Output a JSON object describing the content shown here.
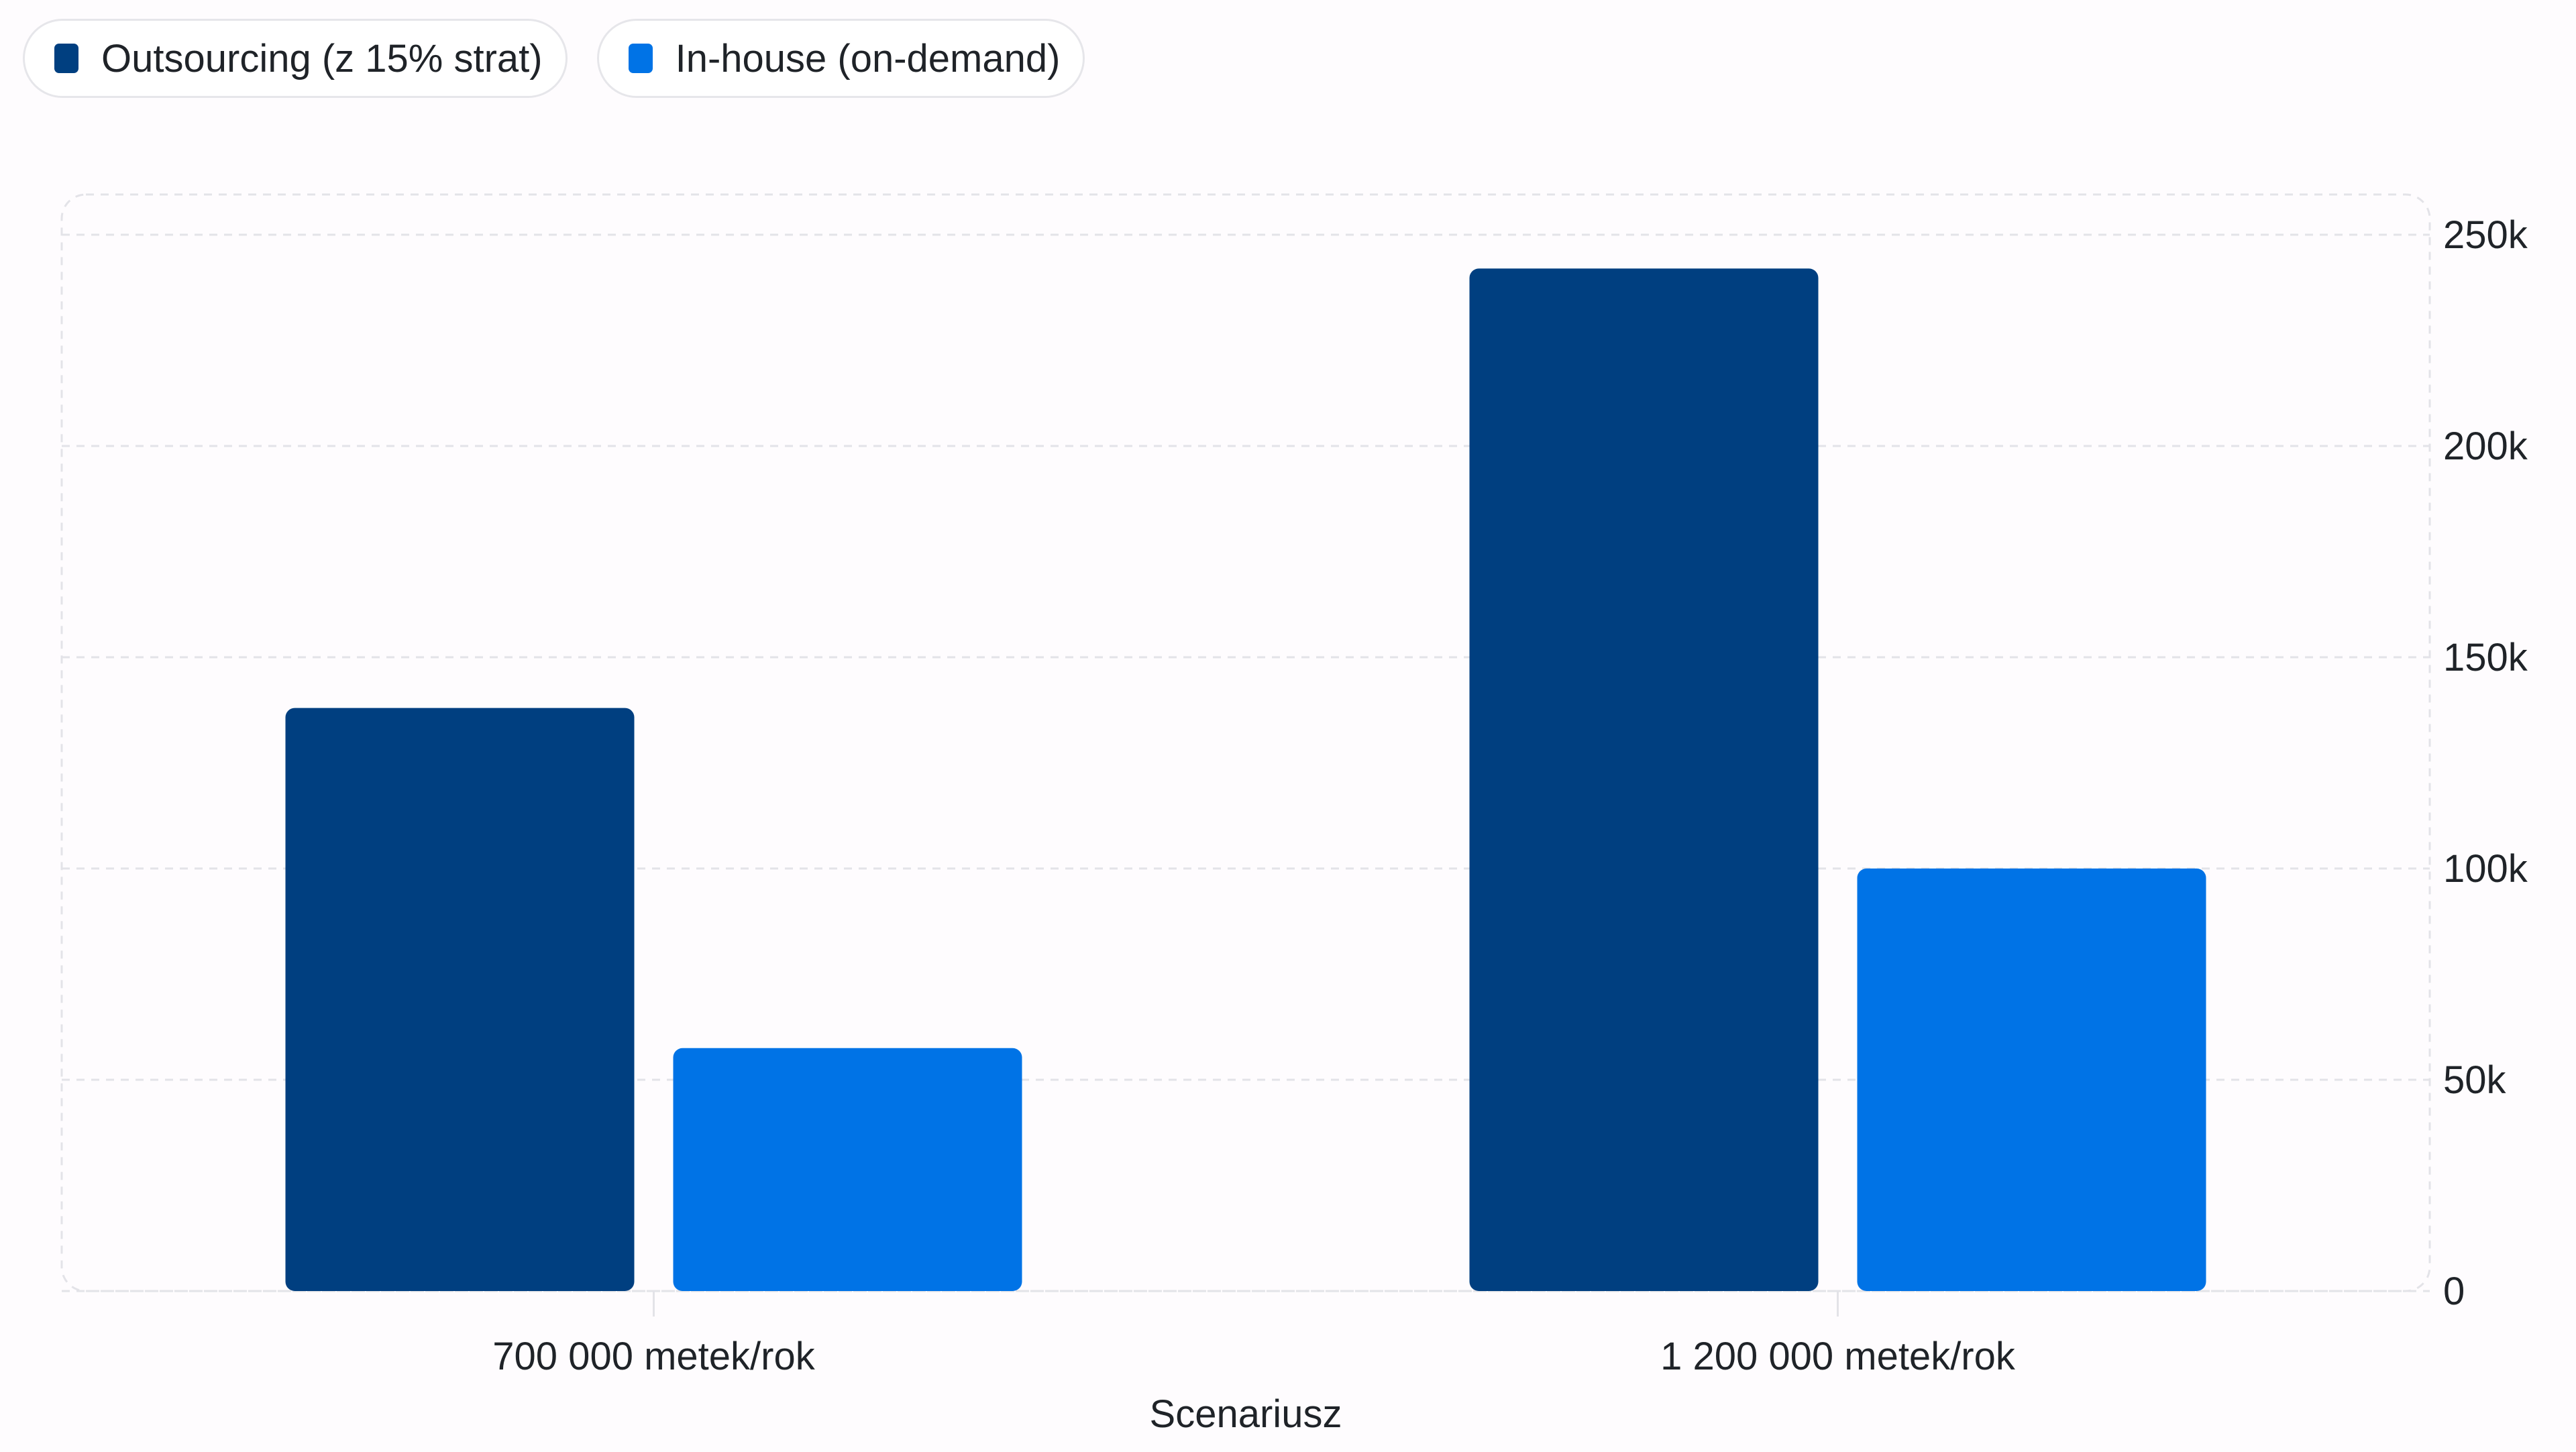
{
  "chart_data": {
    "type": "bar",
    "title": "",
    "xlabel": "Scenariusz",
    "ylabel": "",
    "categories": [
      "700 000 metek/rok",
      "1 200 000 metek/rok"
    ],
    "series": [
      {
        "name": "Outsourcing (z 15% strat)",
        "color": "#003f80",
        "values": [
          138000,
          242000
        ]
      },
      {
        "name": "In-house (on-demand)",
        "color": "#0073e6",
        "values": [
          57500,
          100000
        ]
      }
    ],
    "ylim": [
      0,
      250000
    ],
    "yticks": [
      0,
      50000,
      100000,
      150000,
      200000,
      250000
    ],
    "ytick_labels": [
      "0",
      "50k",
      "100k",
      "150k",
      "200k",
      "250k"
    ],
    "y_axis_side": "right",
    "grid": true,
    "legend_position": "top-left"
  }
}
